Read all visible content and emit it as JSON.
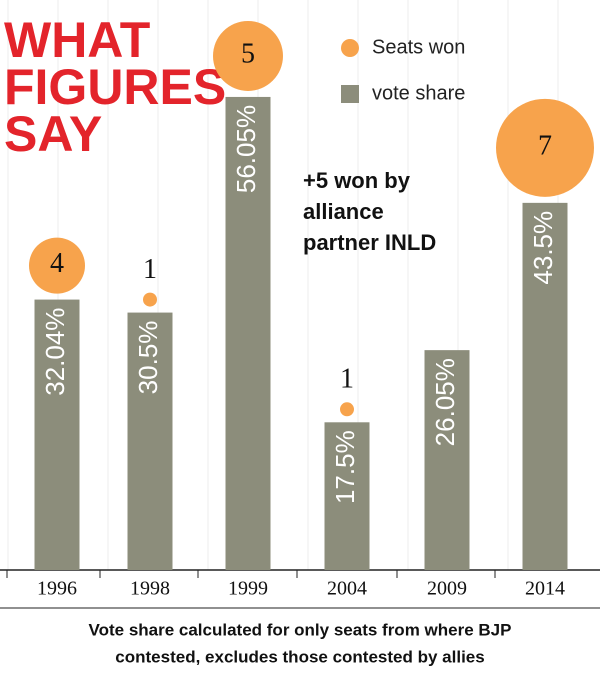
{
  "chart_data": {
    "type": "bar",
    "title": [
      "WHAT",
      "FIGURES",
      "SAY"
    ],
    "categories": [
      "1996",
      "1998",
      "1999",
      "2004",
      "2009",
      "2014"
    ],
    "series": [
      {
        "name": "vote share",
        "color": "#8c8d7b",
        "values": [
          32.04,
          30.5,
          56.05,
          17.5,
          26.05,
          43.5
        ],
        "value_labels": [
          "32.04%",
          "30.5%",
          "56.05%",
          "17.5%",
          "26.05%",
          "43.5%"
        ]
      },
      {
        "name": "Seats won",
        "color": "#f7a34c",
        "values": [
          4,
          1,
          5,
          1,
          null,
          7
        ]
      }
    ],
    "annotation": [
      "+5 won by",
      "alliance",
      "partner INLD"
    ],
    "footnote": [
      "Vote share calculated for only seats from where BJP",
      "contested, excludes those contested by allies"
    ]
  }
}
